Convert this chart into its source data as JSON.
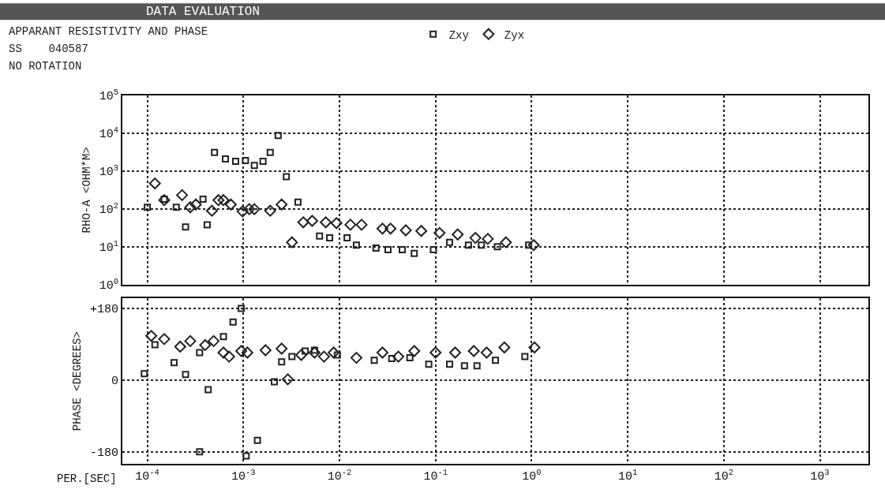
{
  "chart_data": [
    {
      "type": "scatter",
      "title": "DATA EVALUATION",
      "subtitle": "APPARANT RESISTIVITY AND PHASE",
      "annotations": [
        "SS    040587",
        "NO ROTATION"
      ],
      "ylabel": "RHO-A <OHM*M>",
      "log": "xy",
      "grid": true,
      "legend": "top",
      "tick_labels": "y",
      "xlim": [
        5.5e-05,
        3200
      ],
      "xticks": [
        {
          "value": 0.0001,
          "label": "10$^{-4}$"
        },
        {
          "value": 0.001,
          "label": "10$^{-3}$"
        },
        {
          "value": 0.01,
          "label": "10$^{-2}$"
        },
        {
          "value": 0.1,
          "label": "10$^{-1}$"
        },
        {
          "value": 1,
          "label": "10$^{0}$"
        },
        {
          "value": 10,
          "label": "10$^{1}$"
        },
        {
          "value": 100,
          "label": "10$^{2}$"
        },
        {
          "value": 1000,
          "label": "10$^{3}$"
        }
      ],
      "ylim": [
        1,
        100000
      ],
      "yticks": [
        {
          "value": 1,
          "label": "10$^{0}$"
        },
        {
          "value": 10,
          "label": "10$^{1}$"
        },
        {
          "value": 100,
          "label": "10$^{2}$"
        },
        {
          "value": 1000,
          "label": "10$^{3}$"
        },
        {
          "value": 10000,
          "label": "10$^{4}$"
        },
        {
          "value": 100000,
          "label": "10$^{5}$"
        }
      ],
      "series": [
        {
          "name": "Zxy",
          "color": "#222222",
          "marker": "square",
          "x": [
            0.0001,
            0.00015,
            0.0002,
            0.00025,
            0.00038,
            0.00042,
            0.0005,
            0.00065,
            0.00083,
            0.00105,
            0.0013,
            0.0016,
            0.0019,
            0.0023,
            0.0028,
            0.0037,
            0.0062,
            0.0079,
            0.012,
            0.015,
            0.024,
            0.032,
            0.045,
            0.06,
            0.095,
            0.14,
            0.22,
            0.3,
            0.44,
            0.93
          ],
          "values": [
            110,
            180,
            110,
            33,
            180,
            38,
            3100,
            2100,
            1800,
            1900,
            1400,
            1800,
            3100,
            8700,
            710,
            150,
            19,
            17,
            17,
            11,
            9.1,
            8.3,
            8.3,
            6.6,
            8.3,
            13,
            11,
            11,
            10,
            11
          ]
        },
        {
          "name": "Zyx",
          "color": "#222222",
          "marker": "diamond",
          "x": [
            0.00012,
            0.00015,
            0.00023,
            0.00028,
            0.00032,
            0.00047,
            0.00055,
            0.00062,
            0.00074,
            0.00098,
            0.00115,
            0.0013,
            0.0019,
            0.0025,
            0.0032,
            0.0042,
            0.0052,
            0.0072,
            0.0093,
            0.013,
            0.017,
            0.028,
            0.034,
            0.049,
            0.071,
            0.11,
            0.17,
            0.26,
            0.35,
            0.54,
            1.05
          ],
          "values": [
            470,
            170,
            230,
            110,
            130,
            89,
            170,
            170,
            130,
            85,
            98,
            98,
            89,
            130,
            13,
            44,
            48,
            44,
            42,
            38,
            38,
            30,
            30,
            27,
            26,
            23,
            21,
            17,
            16,
            13,
            11
          ]
        }
      ]
    },
    {
      "type": "scatter",
      "xlabel": "PER.[SEC]",
      "ylabel": "PHASE <DEGREES>",
      "log": "x",
      "grid": true,
      "xlim": [
        5.5e-05,
        3200
      ],
      "xticks": [
        {
          "value": 0.0001,
          "label": "10$^{-4}$"
        },
        {
          "value": 0.001,
          "label": "10$^{-3}$"
        },
        {
          "value": 0.01,
          "label": "10$^{-2}$"
        },
        {
          "value": 0.1,
          "label": "10$^{-1}$"
        },
        {
          "value": 1,
          "label": "10$^{0}$"
        },
        {
          "value": 10,
          "label": "10$^{1}$"
        },
        {
          "value": 100,
          "label": "10$^{2}$"
        },
        {
          "value": 1000,
          "label": "10$^{3}$"
        }
      ],
      "ylim": [
        -210,
        205
      ],
      "yticks": [
        {
          "value": 180,
          "label": "+180"
        },
        0,
        -180
      ],
      "series": [
        {
          "color": "#222222",
          "marker": "square",
          "x": [
            9.3e-05,
            0.00012,
            0.00019,
            0.00025,
            0.00035,
            0.00043,
            0.00035,
            0.00062,
            0.00078,
            0.00095,
            0.00107,
            0.0014,
            0.0021,
            0.0025,
            0.0032,
            0.0044,
            0.0055,
            0.0095,
            0.023,
            0.035,
            0.054,
            0.085,
            0.14,
            0.2,
            0.27,
            0.42,
            0.85
          ],
          "values": [
            16,
            89,
            44,
            14,
            69,
            -24,
            -180,
            109,
            146,
            180,
            -190,
            -151,
            -4,
            46,
            59,
            73,
            75,
            63,
            50,
            54,
            56,
            40,
            40,
            36,
            36,
            50,
            59
          ]
        },
        {
          "color": "#222222",
          "marker": "diamond",
          "x": [
            0.00011,
            0.00015,
            0.00022,
            0.00028,
            0.0004,
            0.00049,
            0.00062,
            0.00071,
            0.00095,
            0.0011,
            0.0017,
            0.0025,
            0.0029,
            0.004,
            0.0055,
            0.0069,
            0.0087,
            0.015,
            0.028,
            0.041,
            0.06,
            0.1,
            0.16,
            0.25,
            0.34,
            0.52,
            1.07
          ],
          "values": [
            111,
            103,
            84,
            98,
            88,
            98,
            69,
            59,
            73,
            69,
            75,
            79,
            2,
            63,
            69,
            59,
            69,
            56,
            69,
            59,
            73,
            69,
            69,
            73,
            69,
            82,
            82
          ]
        }
      ]
    }
  ]
}
